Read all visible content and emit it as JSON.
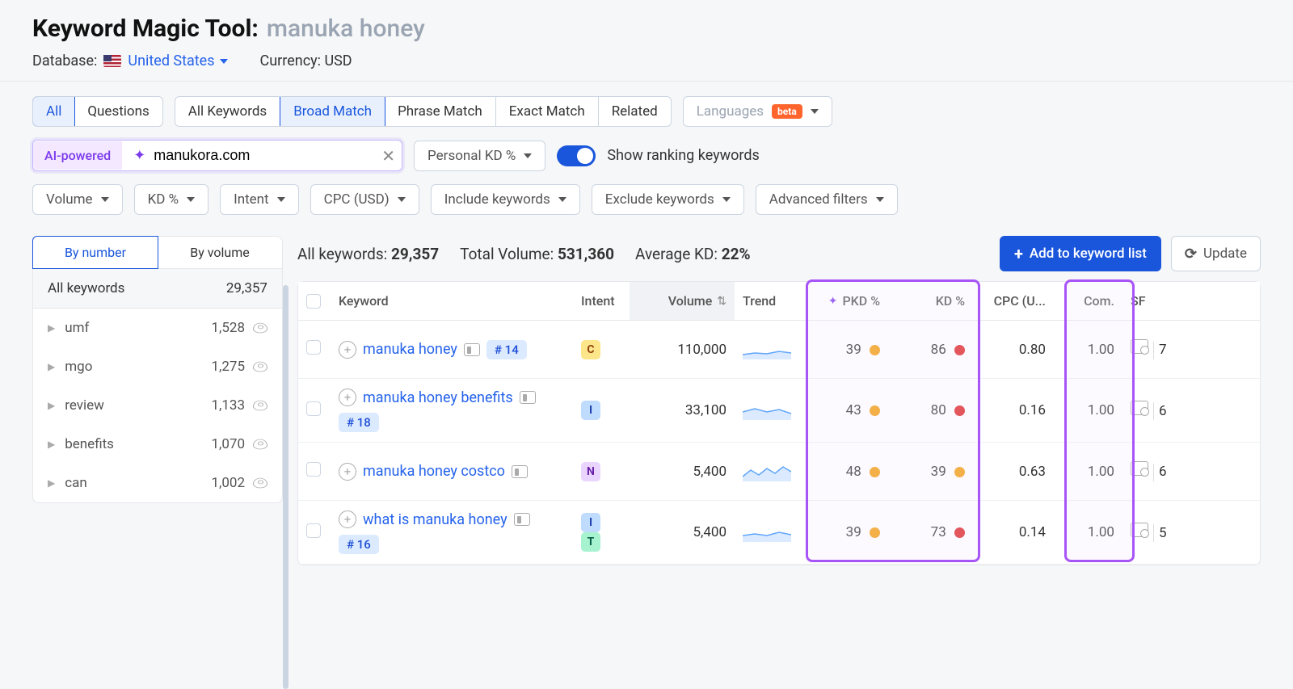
{
  "header": {
    "title": "Keyword Magic Tool:",
    "query": "manuka honey",
    "database_label": "Database:",
    "database_value": "United States",
    "currency_label": "Currency: USD"
  },
  "filter_tabs1": [
    "All",
    "Questions"
  ],
  "filter_tabs2": [
    "All Keywords",
    "Broad Match",
    "Phrase Match",
    "Exact Match",
    "Related"
  ],
  "filter_tabs2_active": "Broad Match",
  "languages_label": "Languages",
  "beta_label": "beta",
  "ai_label": "AI-powered",
  "domain_value": "manukora.com",
  "personal_kd_label": "Personal KD %",
  "show_ranking_label": "Show ranking keywords",
  "filter_dropdowns": [
    "Volume",
    "KD %",
    "Intent",
    "CPC (USD)",
    "Include keywords",
    "Exclude keywords",
    "Advanced filters"
  ],
  "sidebar": {
    "tab1": "By number",
    "tab2": "By volume",
    "all_label": "All keywords",
    "all_count": "29,357",
    "items": [
      {
        "label": "umf",
        "count": "1,528"
      },
      {
        "label": "mgo",
        "count": "1,275"
      },
      {
        "label": "review",
        "count": "1,133"
      },
      {
        "label": "benefits",
        "count": "1,070"
      },
      {
        "label": "can",
        "count": "1,002"
      }
    ]
  },
  "summary": {
    "all_kw_label": "All keywords:",
    "all_kw_value": "29,357",
    "vol_label": "Total Volume:",
    "vol_value": "531,360",
    "kd_label": "Average KD:",
    "kd_value": "22%",
    "add_button": "Add to keyword list",
    "update_button": "Update"
  },
  "columns": {
    "keyword": "Keyword",
    "intent": "Intent",
    "volume": "Volume",
    "trend": "Trend",
    "pkd": "PKD %",
    "kd": "KD %",
    "cpc": "CPC (U...",
    "com": "Com.",
    "sf": "SF"
  },
  "rows": [
    {
      "keyword": "manuka honey",
      "rank": "# 14",
      "intents": [
        "C"
      ],
      "volume": "110,000",
      "pkd": "39",
      "pkd_dot": "#f59e0b",
      "kd": "86",
      "kd_dot": "#dc2626",
      "cpc": "0.80",
      "com": "1.00",
      "sf": "7",
      "trend": "0,18 15,16 30,17 45,14 60,16"
    },
    {
      "keyword": "manuka honey benefits",
      "rank": "# 18",
      "intents": [
        "I"
      ],
      "volume": "33,100",
      "pkd": "43",
      "pkd_dot": "#f59e0b",
      "kd": "80",
      "kd_dot": "#dc2626",
      "cpc": "0.16",
      "com": "1.00",
      "sf": "6",
      "trend": "0,14 15,10 30,14 45,11 60,16"
    },
    {
      "keyword": "manuka honey costco",
      "rank": "",
      "intents": [
        "N"
      ],
      "volume": "5,400",
      "pkd": "48",
      "pkd_dot": "#f59e0b",
      "kd": "39",
      "kd_dot": "#f59e0b",
      "cpc": "0.63",
      "com": "1.00",
      "sf": "6",
      "trend": "0,18 10,10 20,16 30,8 40,14 50,6 60,12"
    },
    {
      "keyword": "what is manuka honey",
      "rank": "# 16",
      "intents": [
        "I",
        "T"
      ],
      "volume": "5,400",
      "pkd": "39",
      "pkd_dot": "#f59e0b",
      "kd": "73",
      "kd_dot": "#dc2626",
      "cpc": "0.14",
      "com": "1.00",
      "sf": "5",
      "trend": "0,16 15,14 30,16 45,12 60,15"
    }
  ],
  "colors": {
    "trend_stroke": "#60a5fa",
    "trend_fill": "#dbeafe"
  }
}
